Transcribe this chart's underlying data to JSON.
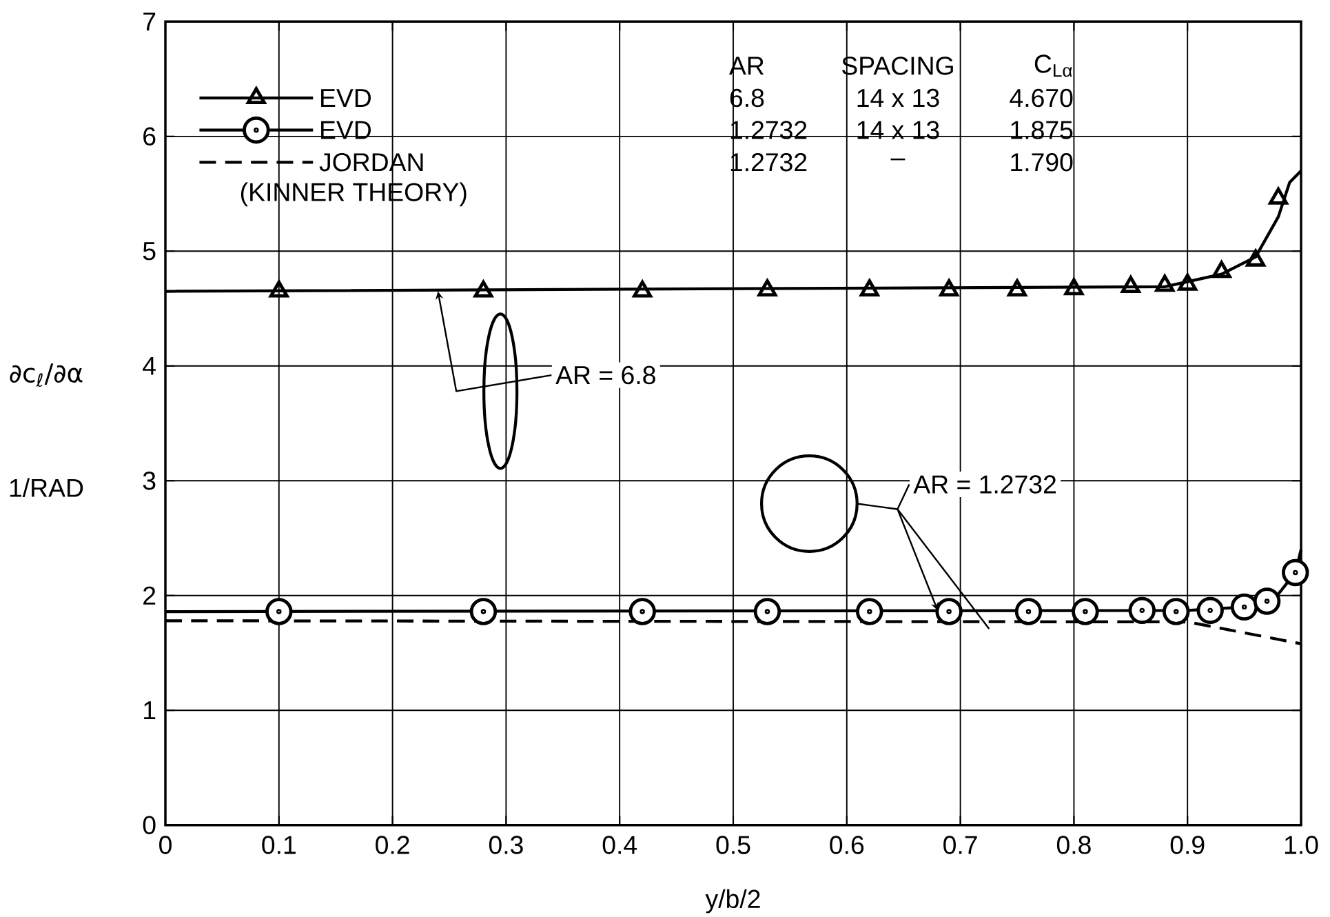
{
  "chart_data": {
    "type": "line",
    "xlabel": "y/b/2",
    "ylabel": "∂c$_{ℓ}$/∂α",
    "xlim": [
      0,
      1
    ],
    "ylim": [
      0,
      7
    ],
    "xticks": [
      0,
      0.1,
      0.2,
      0.3,
      0.4,
      0.5,
      0.6,
      0.7,
      0.8,
      0.9,
      {
        "value": 1,
        "label": "1.0"
      }
    ],
    "yticks": [
      0,
      1,
      2,
      3,
      4,
      5,
      6,
      7
    ],
    "grid": true,
    "legend": "top left",
    "series": [
      {
        "name": "EVD",
        "type": "scatter",
        "marker": "triangle",
        "color": "#000000",
        "x": [
          0.1,
          0.28,
          0.42,
          0.53,
          0.62,
          0.69,
          0.75,
          0.8,
          0.85,
          0.88,
          0.9,
          0.93,
          0.96,
          0.98
        ],
        "values": [
          4.65,
          4.65,
          4.65,
          4.66,
          4.66,
          4.66,
          4.66,
          4.67,
          4.69,
          4.7,
          4.71,
          4.82,
          4.92,
          5.46
        ]
      },
      {
        "color": "#000000",
        "line_style": "solid",
        "x": [
          0,
          0.88,
          0.93,
          0.96,
          0.98,
          0.99,
          1.0
        ],
        "values": [
          4.65,
          4.69,
          4.8,
          4.95,
          5.3,
          5.6,
          5.7
        ]
      },
      {
        "name": "EVD",
        "type": "scatter",
        "marker": "circle",
        "color": "#000000",
        "x": [
          0.1,
          0.28,
          0.42,
          0.53,
          0.62,
          0.69,
          0.76,
          0.81,
          0.86,
          0.89,
          0.92,
          0.95,
          0.97,
          0.995
        ],
        "values": [
          1.86,
          1.86,
          1.86,
          1.86,
          1.86,
          1.86,
          1.86,
          1.86,
          1.87,
          1.86,
          1.87,
          1.9,
          1.95,
          2.2
        ]
      },
      {
        "color": "#000000",
        "line_style": "solid",
        "x": [
          0,
          0.9,
          0.95,
          0.975,
          0.995,
          1.0
        ],
        "values": [
          1.86,
          1.87,
          1.9,
          1.95,
          2.2,
          2.4
        ]
      },
      {
        "name": "JORDAN",
        "color": "#000000",
        "line_style": "dashed",
        "x": [
          0,
          0.9,
          1.0
        ],
        "values": [
          1.78,
          1.77,
          1.58
        ]
      }
    ],
    "annotations": [
      "AR",
      "SPACING",
      "C$_{Lα}$",
      "6.8",
      "14 x 13",
      "4.670",
      "1.2732",
      "14 x 13",
      "1.875",
      "1.2732",
      "–",
      "1.790",
      "(KINNER THEORY)",
      {
        "text": "AR = 6.8",
        "x": 0.24,
        "y": 4.65
      },
      {
        "text": "AR = 1.2732",
        "x": 0.68,
        "y": 1.87
      },
      "1/RAD"
    ]
  }
}
